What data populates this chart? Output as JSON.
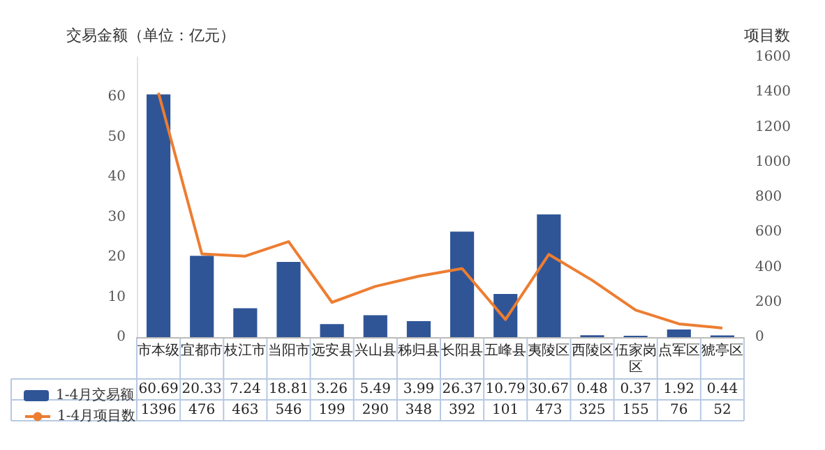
{
  "chart_data": {
    "type": "bar",
    "ylabel": "交易金额（单位：亿元）",
    "y2label": "项目数",
    "categories": [
      "市本级",
      "宜都市",
      "枝江市",
      "当阳市",
      "远安县",
      "兴山县",
      "秭归县",
      "长阳县",
      "五峰县",
      "夷陵区",
      "西陵区",
      "伍家岗区",
      "点军区",
      "猇亭区"
    ],
    "series": [
      {
        "name": "1-4月交易额",
        "color": "#2f5597",
        "values": [
          60.69,
          20.33,
          7.24,
          18.81,
          3.26,
          5.49,
          3.99,
          26.37,
          10.79,
          30.67,
          0.48,
          0.37,
          1.92,
          0.44
        ]
      },
      {
        "name": "1-4月项目数",
        "type": "line",
        "axis": "y2",
        "color": "#ed7d31",
        "marker": "none",
        "values": [
          1396,
          476,
          463,
          546,
          199,
          290,
          348,
          392,
          101,
          473,
          325,
          155,
          76,
          52
        ]
      }
    ],
    "ylim": [
      0,
      70
    ],
    "yticks": [
      0,
      10,
      20,
      30,
      40,
      50,
      60
    ],
    "y2lim": [
      0,
      1600
    ],
    "y2ticks": [
      0,
      200,
      400,
      600,
      800,
      1000,
      1200,
      1400,
      1600
    ],
    "data_labels": true,
    "legend": "bottom left",
    "grid": false
  }
}
